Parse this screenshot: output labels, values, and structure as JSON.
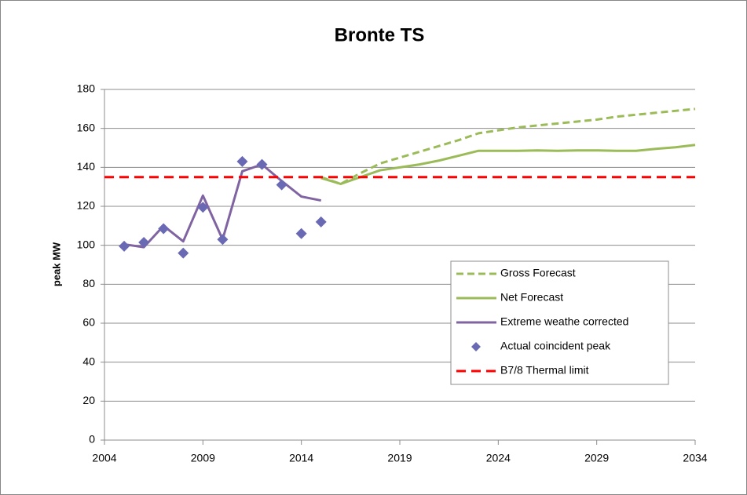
{
  "chart_data": {
    "type": "line",
    "title": "Bronte TS",
    "y_label": "peak MW",
    "xlim": [
      2004,
      2034
    ],
    "xticks": [
      2004,
      2009,
      2014,
      2019,
      2024,
      2029,
      2034
    ],
    "ylim": [
      0,
      180
    ],
    "yticks": [
      0,
      20,
      40,
      60,
      80,
      100,
      120,
      140,
      160,
      180
    ],
    "grid": true,
    "series": [
      {
        "name": "Gross Forecast",
        "color": "#9bbb59",
        "style": "dashed",
        "x": [
          2015,
          2016,
          2017,
          2018,
          2019,
          2020,
          2021,
          2022,
          2023,
          2024,
          2025,
          2026,
          2027,
          2028,
          2029,
          2030,
          2031,
          2032,
          2033,
          2034
        ],
        "values": [
          135,
          131.5,
          137,
          142,
          145,
          148,
          151,
          154,
          157.5,
          159,
          160.5,
          161.5,
          162.5,
          163.5,
          164.5,
          166,
          167,
          168,
          169,
          170
        ]
      },
      {
        "name": "Net Forecast",
        "color": "#9bbb59",
        "style": "solid",
        "x": [
          2015,
          2016,
          2017,
          2018,
          2019,
          2020,
          2021,
          2022,
          2023,
          2024,
          2025,
          2026,
          2027,
          2028,
          2029,
          2030,
          2031,
          2032,
          2033,
          2034
        ],
        "values": [
          134.5,
          131.5,
          135,
          138.5,
          140,
          141.5,
          143.5,
          146,
          148.5,
          148.5,
          148.5,
          148.7,
          148.5,
          148.7,
          148.7,
          148.5,
          148.5,
          149.5,
          150.3,
          151.5
        ]
      },
      {
        "name": "Extreme weathe corrected",
        "color": "#8064a2",
        "style": "solid",
        "x": [
          2005,
          2006,
          2007,
          2008,
          2009,
          2010,
          2011,
          2012,
          2013,
          2014,
          2015
        ],
        "values": [
          100.5,
          99,
          110,
          102,
          125.5,
          103,
          138,
          141.5,
          133,
          125,
          123
        ]
      },
      {
        "name": "Actual coincident peak",
        "color": "#6a6ab4",
        "style": "marker",
        "x": [
          2005,
          2006,
          2007,
          2008,
          2009,
          2010,
          2011,
          2012,
          2013,
          2014,
          2015
        ],
        "values": [
          99.5,
          101.5,
          108.5,
          96,
          119.5,
          103,
          143,
          141.5,
          131,
          106,
          112
        ]
      },
      {
        "name": "B7/8 Thermal limit",
        "color": "#ff0000",
        "style": "dashed-thick",
        "x": [
          2004,
          2034
        ],
        "values": [
          135,
          135
        ]
      }
    ]
  }
}
